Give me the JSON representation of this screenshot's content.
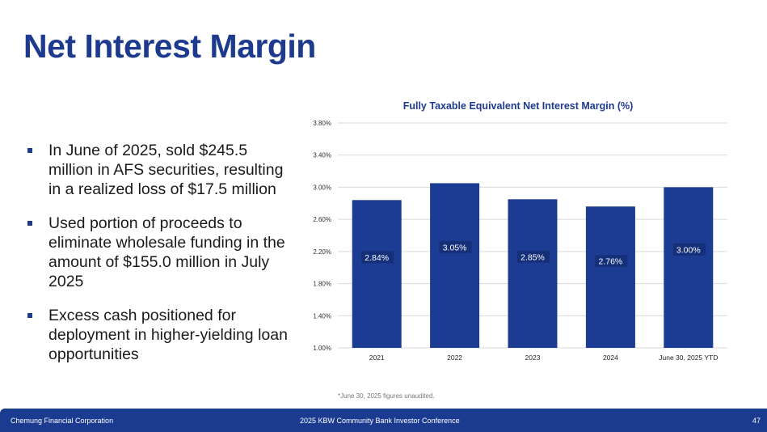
{
  "title": "Net Interest Margin",
  "bullets": [
    "In June of 2025, sold $245.5 million in AFS securities, resulting in a realized loss of $17.5 million",
    "Used portion of proceeds to eliminate wholesale funding in the amount of $155.0 million in July 2025",
    "Excess cash positioned for deployment in higher-yielding loan opportunities"
  ],
  "footnote": "*June 30, 2025 figures unaudited.",
  "footer": {
    "company": "Chemung Financial Corporation",
    "event": "2025 KBW Community Bank Investor Conference",
    "page": "47"
  },
  "colors": {
    "brand": "#1b3b91",
    "bar": "#1c3c93"
  },
  "chart_data": {
    "type": "bar",
    "title": "Fully Taxable Equivalent Net Interest Margin (%)",
    "categories": [
      "2021",
      "2022",
      "2023",
      "2024",
      "June 30, 2025 YTD"
    ],
    "values": [
      2.84,
      3.05,
      2.85,
      2.76,
      3.0
    ],
    "labels": [
      "2.84%",
      "3.05%",
      "2.85%",
      "2.76%",
      "3.00%"
    ],
    "ylim": [
      1.0,
      3.8
    ],
    "yticks": [
      "1.00%",
      "1.40%",
      "1.80%",
      "2.20%",
      "2.60%",
      "3.00%",
      "3.40%",
      "3.80%"
    ],
    "xlabel": "",
    "ylabel": "",
    "grid": true
  }
}
